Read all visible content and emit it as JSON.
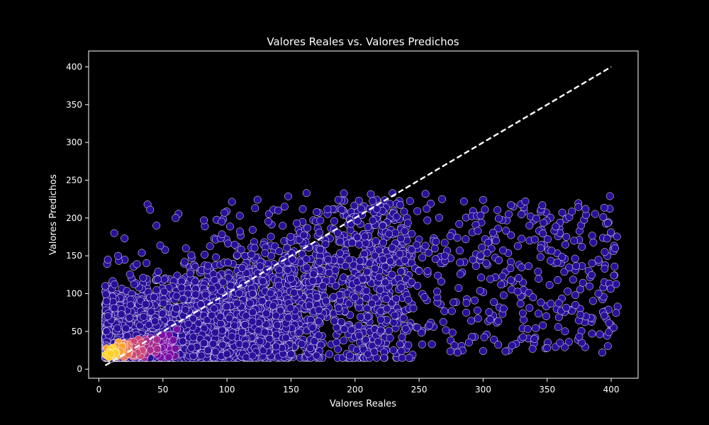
{
  "chart_data": {
    "type": "scatter",
    "title": "Valores Reales vs. Valores Predichos",
    "xlabel": "Valores Reales",
    "ylabel": "Valores Predichos",
    "xlim": [
      -8,
      421
    ],
    "ylim": [
      -12,
      421
    ],
    "xticks": [
      0,
      50,
      100,
      150,
      200,
      250,
      300,
      350,
      400
    ],
    "yticks": [
      0,
      50,
      100,
      150,
      200,
      250,
      300,
      350,
      400
    ],
    "grid": false,
    "legend": "none",
    "colormap": "plasma (point density)",
    "colors": {
      "background": "#000000",
      "foreground": "#ffffff",
      "low_density": "#2a0f9a",
      "high_density": "#fde725",
      "reference_line": "#ffffff"
    },
    "reference_line": {
      "style": "dashed",
      "from": [
        5,
        5
      ],
      "to": [
        400,
        400
      ]
    },
    "points_sample": [
      [
        7,
        145
      ],
      [
        12,
        180
      ],
      [
        15,
        150
      ],
      [
        20,
        173
      ],
      [
        38,
        218
      ],
      [
        40,
        211
      ],
      [
        45,
        190
      ],
      [
        60,
        200
      ],
      [
        82,
        197
      ],
      [
        98,
        207
      ],
      [
        110,
        203
      ],
      [
        122,
        213
      ],
      [
        140,
        210
      ],
      [
        145,
        215
      ],
      [
        170,
        208
      ],
      [
        187,
        224
      ],
      [
        203,
        223
      ],
      [
        217,
        212
      ],
      [
        255,
        232
      ],
      [
        268,
        225
      ],
      [
        285,
        222
      ],
      [
        300,
        224
      ],
      [
        320,
        205
      ],
      [
        333,
        222
      ],
      [
        380,
        212
      ],
      [
        399,
        229
      ],
      [
        403,
        160
      ],
      [
        395,
        155
      ],
      [
        390,
        100
      ],
      [
        393,
        22
      ],
      [
        350,
        28
      ],
      [
        360,
        35
      ],
      [
        377,
        35
      ],
      [
        375,
        43
      ],
      [
        340,
        40
      ],
      [
        300,
        24
      ],
      [
        280,
        22
      ],
      [
        260,
        33
      ],
      [
        230,
        25
      ],
      [
        210,
        20
      ],
      [
        196,
        18
      ],
      [
        180,
        20
      ],
      [
        170,
        18
      ],
      [
        150,
        20
      ],
      [
        120,
        18
      ],
      [
        100,
        20
      ],
      [
        80,
        18
      ],
      [
        60,
        15
      ],
      [
        40,
        15
      ],
      [
        25,
        15
      ],
      [
        10,
        14
      ],
      [
        8,
        20
      ],
      [
        6,
        30
      ],
      [
        6,
        50
      ],
      [
        7,
        70
      ],
      [
        6,
        90
      ],
      [
        5,
        110
      ],
      [
        20,
        30
      ],
      [
        15,
        25
      ],
      [
        12,
        22
      ],
      [
        18,
        28
      ],
      [
        22,
        35
      ],
      [
        28,
        30
      ],
      [
        35,
        25
      ],
      [
        50,
        40
      ],
      [
        70,
        60
      ],
      [
        90,
        80
      ],
      [
        120,
        100
      ],
      [
        150,
        120
      ],
      [
        175,
        110
      ],
      [
        200,
        95
      ],
      [
        225,
        80
      ],
      [
        250,
        130
      ],
      [
        270,
        150
      ],
      [
        310,
        170
      ],
      [
        345,
        160
      ],
      [
        365,
        175
      ],
      [
        385,
        140
      ],
      [
        366,
        103
      ],
      [
        372,
        85
      ],
      [
        376,
        72
      ],
      [
        364,
        50
      ],
      [
        385,
        47
      ],
      [
        331,
        74
      ],
      [
        339,
        95
      ],
      [
        296,
        67
      ],
      [
        292,
        145
      ],
      [
        314,
        112
      ],
      [
        258,
        58
      ],
      [
        236,
        108
      ]
    ]
  }
}
